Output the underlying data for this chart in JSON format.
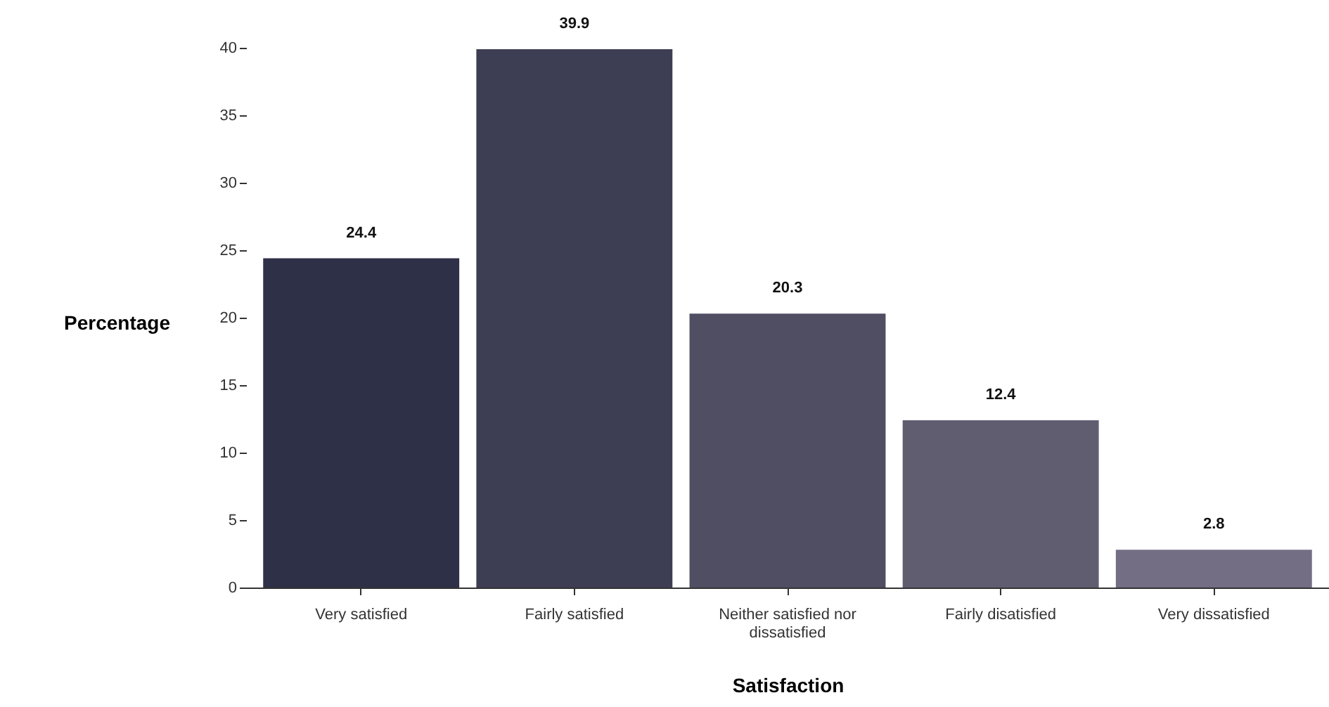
{
  "chart_data": {
    "type": "bar",
    "xlabel": "Satisfaction",
    "ylabel": "Percentage",
    "categories": [
      "Very satisfied",
      "Fairly satisfied",
      "Neither satisfied nor dissatisfied",
      "Fairly disatisfied",
      "Very dissatisfied"
    ],
    "values": [
      24.4,
      39.9,
      20.3,
      12.4,
      2.8
    ],
    "colors": [
      "#2e3047",
      "#3d3e54",
      "#504e63",
      "#615d71",
      "#736e83"
    ],
    "ylim": [
      0,
      40
    ],
    "yticks": [
      0,
      5,
      10,
      15,
      20,
      25,
      30,
      35,
      40
    ],
    "data_labels": true,
    "grid": false
  }
}
